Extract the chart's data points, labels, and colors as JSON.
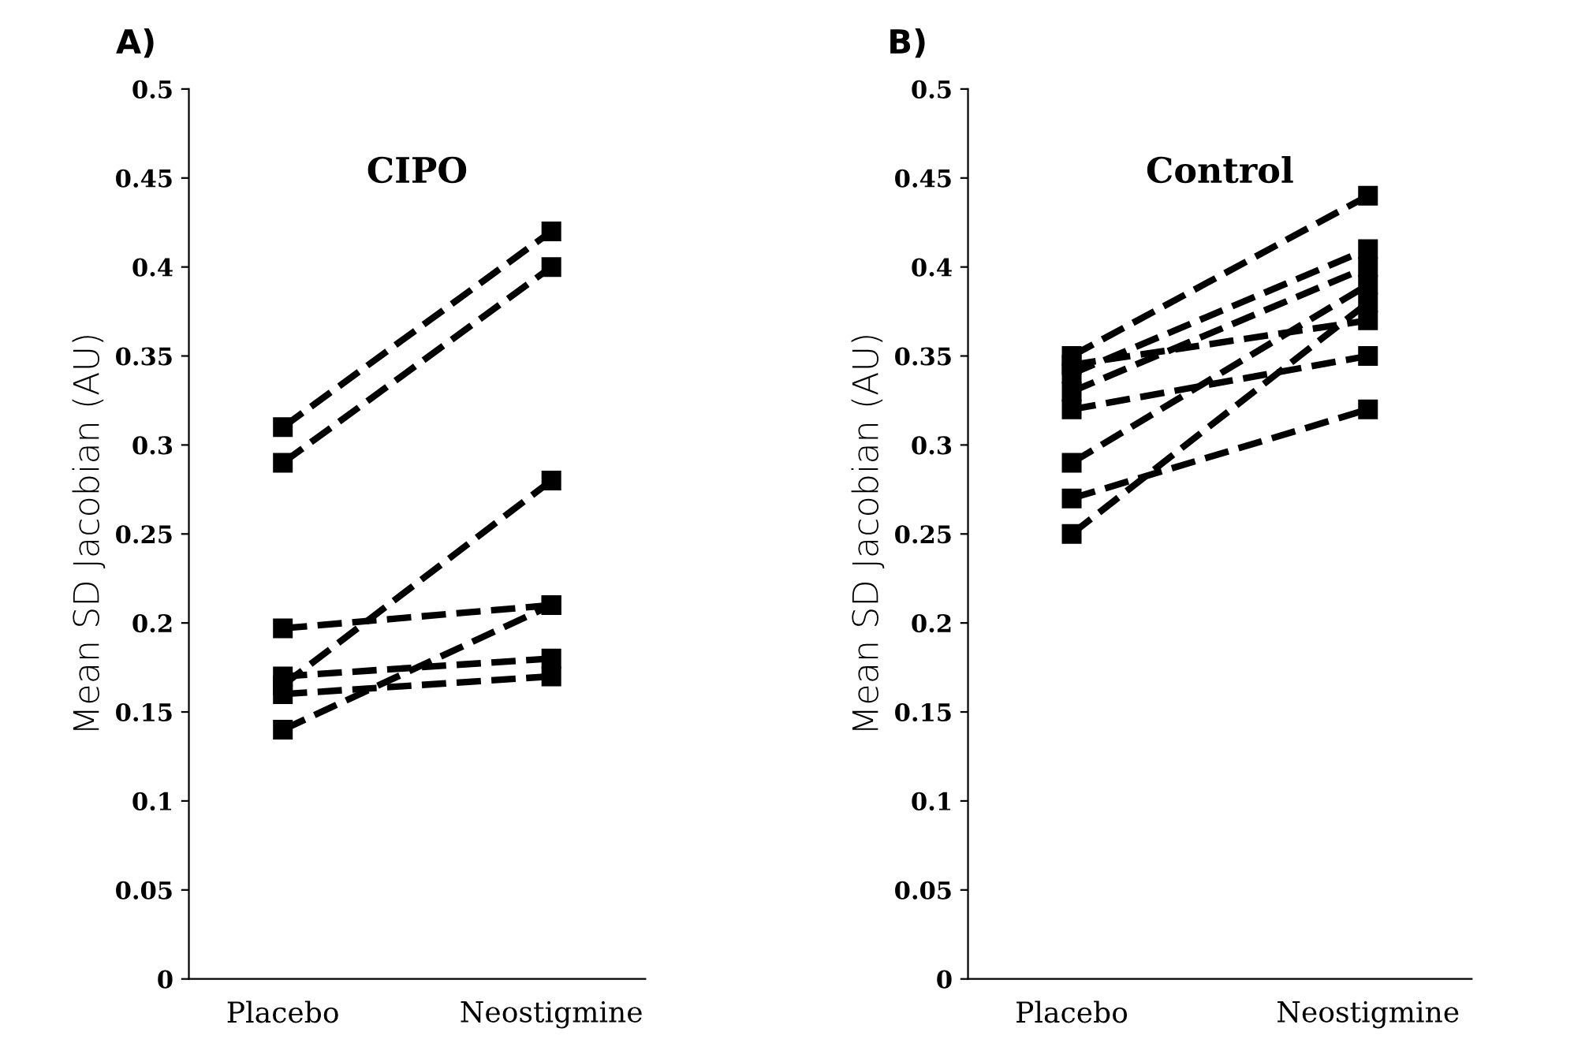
{
  "chart_data": [
    {
      "type": "line",
      "title": "CIPO",
      "annotations": [
        "A)"
      ],
      "ylabel": "Mean SD Jacobian (AU)",
      "categories": [
        "Placebo",
        "Neostigmine"
      ],
      "ylim": [
        0,
        0.5
      ],
      "yticks": [
        0,
        0.05,
        0.1,
        0.15,
        0.2,
        0.25,
        0.3,
        0.35,
        0.4,
        0.45,
        0.5
      ],
      "marker": "square",
      "line_style": "dashed",
      "grid": false,
      "legend": false,
      "series": [
        {
          "color": "#000000",
          "values": [
            0.31,
            0.42
          ]
        },
        {
          "color": "#000000",
          "values": [
            0.29,
            0.4
          ]
        },
        {
          "color": "#000000",
          "values": [
            0.197,
            0.21
          ]
        },
        {
          "color": "#000000",
          "values": [
            0.165,
            0.28
          ]
        },
        {
          "color": "#000000",
          "values": [
            0.17,
            0.18
          ]
        },
        {
          "color": "#000000",
          "values": [
            0.16,
            0.17
          ]
        },
        {
          "color": "#000000",
          "values": [
            0.14,
            0.21
          ]
        }
      ]
    },
    {
      "type": "line",
      "title": "Control",
      "annotations": [
        "B)"
      ],
      "ylabel": "Mean SD Jacobian (AU)",
      "categories": [
        "Placebo",
        "Neostigmine"
      ],
      "ylim": [
        0,
        0.5
      ],
      "yticks": [
        0,
        0.05,
        0.1,
        0.15,
        0.2,
        0.25,
        0.3,
        0.35,
        0.4,
        0.45,
        0.5
      ],
      "marker": "square",
      "line_style": "dashed",
      "grid": false,
      "legend": false,
      "series": [
        {
          "color": "#000000",
          "values": [
            0.35,
            0.44
          ]
        },
        {
          "color": "#000000",
          "values": [
            0.34,
            0.41
          ]
        },
        {
          "color": "#000000",
          "values": [
            0.33,
            0.4
          ]
        },
        {
          "color": "#000000",
          "values": [
            0.32,
            0.35
          ]
        },
        {
          "color": "#000000",
          "values": [
            0.345,
            0.37
          ]
        },
        {
          "color": "#000000",
          "values": [
            0.29,
            0.39
          ]
        },
        {
          "color": "#000000",
          "values": [
            0.27,
            0.32
          ]
        },
        {
          "color": "#000000",
          "values": [
            0.25,
            0.38
          ]
        }
      ]
    }
  ]
}
